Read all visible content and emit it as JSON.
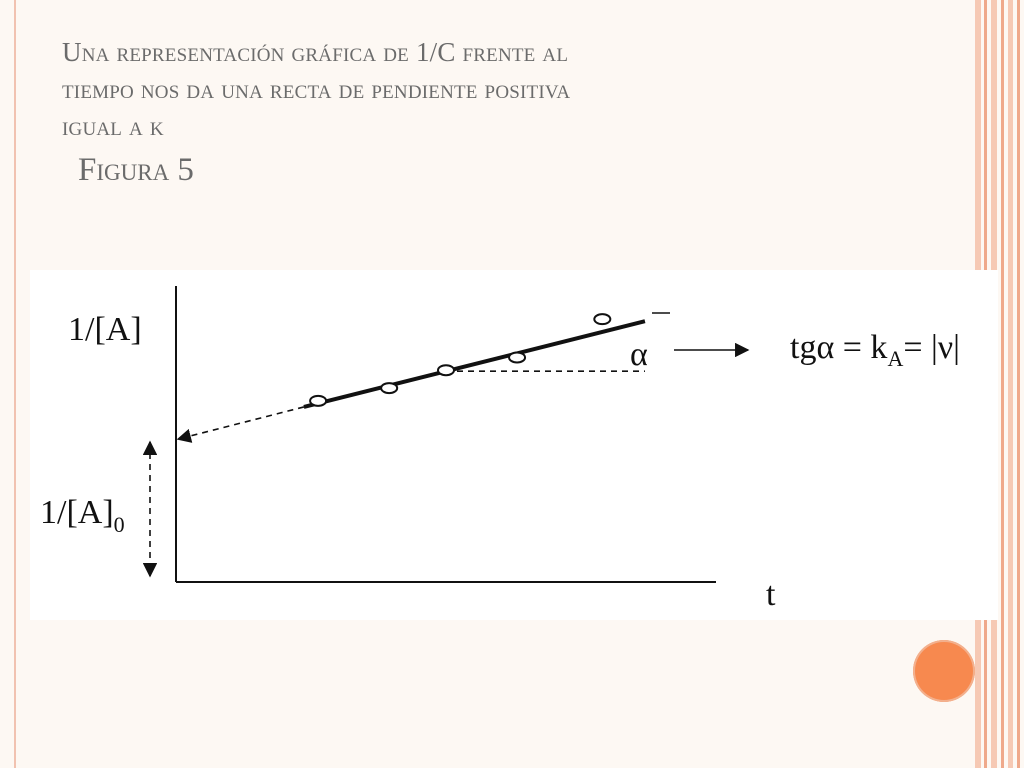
{
  "slide": {
    "title_lines": [
      "Una representación gráfica de 1/C frente al",
      "tiempo nos da una recta de pendiente positiva",
      "igual a k"
    ],
    "subtitle": "Figura 5",
    "colors": {
      "accent": "#f7894f",
      "stripe": "#f2b59c",
      "title_text": "#6b6b6b"
    }
  },
  "chart_data": {
    "type": "scatter",
    "ylabel": "1/[A]",
    "xlabel": "t",
    "intercept_label": "1/[A]",
    "intercept_subscript": "0",
    "angle_label": "α",
    "formula": "tgα = kA= |ν|",
    "formula_parts": {
      "lead": "tgα = k",
      "sub": "A",
      "tail": "= |ν|"
    },
    "points": [
      {
        "x": 1.0,
        "y": 3.55
      },
      {
        "x": 1.5,
        "y": 3.8
      },
      {
        "x": 1.9,
        "y": 4.15
      },
      {
        "x": 2.4,
        "y": 4.4
      },
      {
        "x": 3.0,
        "y": 5.15
      }
    ],
    "fit_line": {
      "intercept": 2.8,
      "slope": 0.7,
      "x_start": 0.9,
      "x_end": 3.3
    },
    "xlim": [
      0,
      3.8
    ],
    "ylim": [
      0,
      5.8
    ],
    "grid": false
  }
}
